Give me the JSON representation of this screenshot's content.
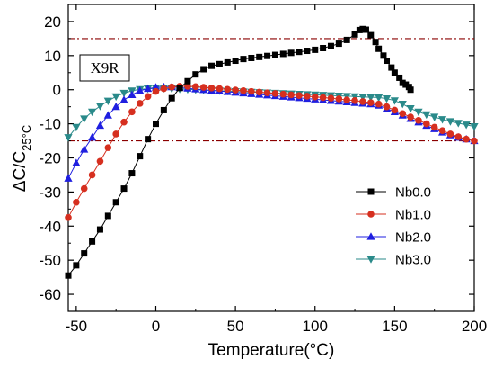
{
  "chart_data": {
    "type": "line",
    "xlabel": "Temperature(°C)",
    "ylabel_main": "ΔC/C",
    "ylabel_sub": "25°C",
    "xlim": [
      -55,
      200
    ],
    "ylim": [
      -65,
      25
    ],
    "x_ticks": [
      -50,
      0,
      50,
      100,
      150,
      200
    ],
    "y_ticks": [
      20,
      10,
      0,
      -10,
      -20,
      -30,
      -40,
      -50,
      -60
    ],
    "x_tick_labels": [
      "-50",
      "0",
      "50",
      "100",
      "150",
      "200"
    ],
    "y_tick_labels": [
      "20",
      "10",
      "0",
      "-10",
      "-20",
      "-30",
      "-40",
      "-50",
      "-60"
    ],
    "reference_lines": [
      15,
      -15
    ],
    "annotation": "X9R",
    "legend_position": "bottom-right",
    "series": [
      {
        "name": "Nb0.0",
        "marker": "square",
        "color": "#000000",
        "x": [
          -55,
          -50,
          -45,
          -40,
          -35,
          -30,
          -25,
          -20,
          -15,
          -10,
          -5,
          0,
          5,
          10,
          15,
          20,
          25,
          30,
          35,
          40,
          45,
          50,
          55,
          60,
          65,
          70,
          75,
          80,
          85,
          90,
          95,
          100,
          105,
          110,
          115,
          120,
          125,
          128,
          130,
          132,
          135,
          138,
          140,
          143,
          145,
          148,
          150,
          153,
          155,
          157,
          159,
          160
        ],
        "y": [
          -54.5,
          -51.5,
          -48,
          -44.5,
          -41,
          -37,
          -33,
          -29,
          -24.5,
          -19.5,
          -14.5,
          -10,
          -6,
          -2.5,
          0.5,
          2.5,
          4.5,
          6,
          7,
          7.5,
          8,
          8.5,
          9,
          9.3,
          9.6,
          9.9,
          10.2,
          10.5,
          10.8,
          11.1,
          11.4,
          11.7,
          12.2,
          12.8,
          13.5,
          14.6,
          16.2,
          17.5,
          17.8,
          17.6,
          16,
          14,
          12,
          10,
          8.5,
          6.5,
          5,
          3.5,
          2,
          1.5,
          0.8,
          0
        ]
      },
      {
        "name": "Nb1.0",
        "marker": "circle",
        "color": "#d62f1f",
        "x": [
          -55,
          -50,
          -45,
          -40,
          -35,
          -30,
          -25,
          -20,
          -15,
          -10,
          -5,
          0,
          5,
          10,
          15,
          20,
          25,
          30,
          35,
          40,
          45,
          50,
          55,
          60,
          65,
          70,
          75,
          80,
          85,
          90,
          95,
          100,
          105,
          110,
          115,
          120,
          125,
          130,
          135,
          140,
          145,
          150,
          155,
          160,
          165,
          170,
          175,
          180,
          185,
          190,
          195,
          200
        ],
        "y": [
          -37.5,
          -33,
          -29,
          -25,
          -21,
          -17,
          -13,
          -9.5,
          -6.5,
          -4,
          -2,
          -0.5,
          0.3,
          0.8,
          1,
          1,
          0.9,
          0.7,
          0.5,
          0.3,
          0.1,
          -0.1,
          -0.3,
          -0.5,
          -0.7,
          -0.9,
          -1.1,
          -1.3,
          -1.5,
          -1.7,
          -1.9,
          -2.1,
          -2.3,
          -2.5,
          -2.7,
          -3,
          -3.2,
          -3.5,
          -3.8,
          -4.2,
          -5,
          -6,
          -7,
          -8,
          -9,
          -10,
          -11,
          -12,
          -13,
          -13.8,
          -14.5,
          -15
        ]
      },
      {
        "name": "Nb2.0",
        "marker": "triangle-up",
        "color": "#1f1fe0",
        "x": [
          -55,
          -50,
          -45,
          -40,
          -35,
          -30,
          -25,
          -20,
          -15,
          -10,
          -5,
          0,
          5,
          10,
          15,
          20,
          25,
          30,
          35,
          40,
          45,
          50,
          55,
          60,
          65,
          70,
          75,
          80,
          85,
          90,
          95,
          100,
          105,
          110,
          115,
          120,
          125,
          130,
          135,
          140,
          145,
          150,
          155,
          160,
          165,
          170,
          175,
          180,
          185,
          190,
          195,
          200
        ],
        "y": [
          -26,
          -21.5,
          -17.5,
          -14,
          -10.5,
          -7.5,
          -5,
          -3,
          -1.5,
          -0.3,
          0.3,
          0.7,
          0.8,
          0.8,
          0.6,
          0.4,
          0.2,
          0,
          -0.2,
          -0.4,
          -0.6,
          -0.8,
          -1,
          -1.2,
          -1.4,
          -1.6,
          -1.8,
          -2,
          -2.2,
          -2.4,
          -2.6,
          -2.8,
          -3,
          -3.2,
          -3.4,
          -3.6,
          -3.8,
          -4,
          -4.2,
          -4.6,
          -5.5,
          -6.5,
          -7.5,
          -8.5,
          -9.5,
          -10.5,
          -11.5,
          -12.5,
          -13.3,
          -14,
          -14.5,
          -15
        ]
      },
      {
        "name": "Nb3.0",
        "marker": "triangle-down",
        "color": "#2a8a8a",
        "x": [
          -55,
          -50,
          -45,
          -40,
          -35,
          -30,
          -25,
          -20,
          -15,
          -10,
          -5,
          0,
          5,
          10,
          15,
          20,
          25,
          30,
          35,
          40,
          45,
          50,
          55,
          60,
          65,
          70,
          75,
          80,
          85,
          90,
          95,
          100,
          105,
          110,
          115,
          120,
          125,
          130,
          135,
          140,
          145,
          150,
          155,
          160,
          165,
          170,
          175,
          180,
          185,
          190,
          195,
          200
        ],
        "y": [
          -14,
          -11,
          -8.5,
          -6.5,
          -4.8,
          -3.3,
          -2,
          -1,
          -0.3,
          0.1,
          0.3,
          0.4,
          0.4,
          0.3,
          0.2,
          0.1,
          0,
          -0.1,
          -0.2,
          -0.3,
          -0.4,
          -0.5,
          -0.6,
          -0.7,
          -0.8,
          -0.9,
          -1,
          -1.1,
          -1.2,
          -1.3,
          -1.4,
          -1.5,
          -1.6,
          -1.7,
          -1.8,
          -1.9,
          -2,
          -2.1,
          -2.2,
          -2.3,
          -2.6,
          -3.2,
          -4.2,
          -5.5,
          -6.5,
          -7.3,
          -8,
          -8.7,
          -9.3,
          -9.8,
          -10.3,
          -10.8
        ]
      }
    ]
  }
}
